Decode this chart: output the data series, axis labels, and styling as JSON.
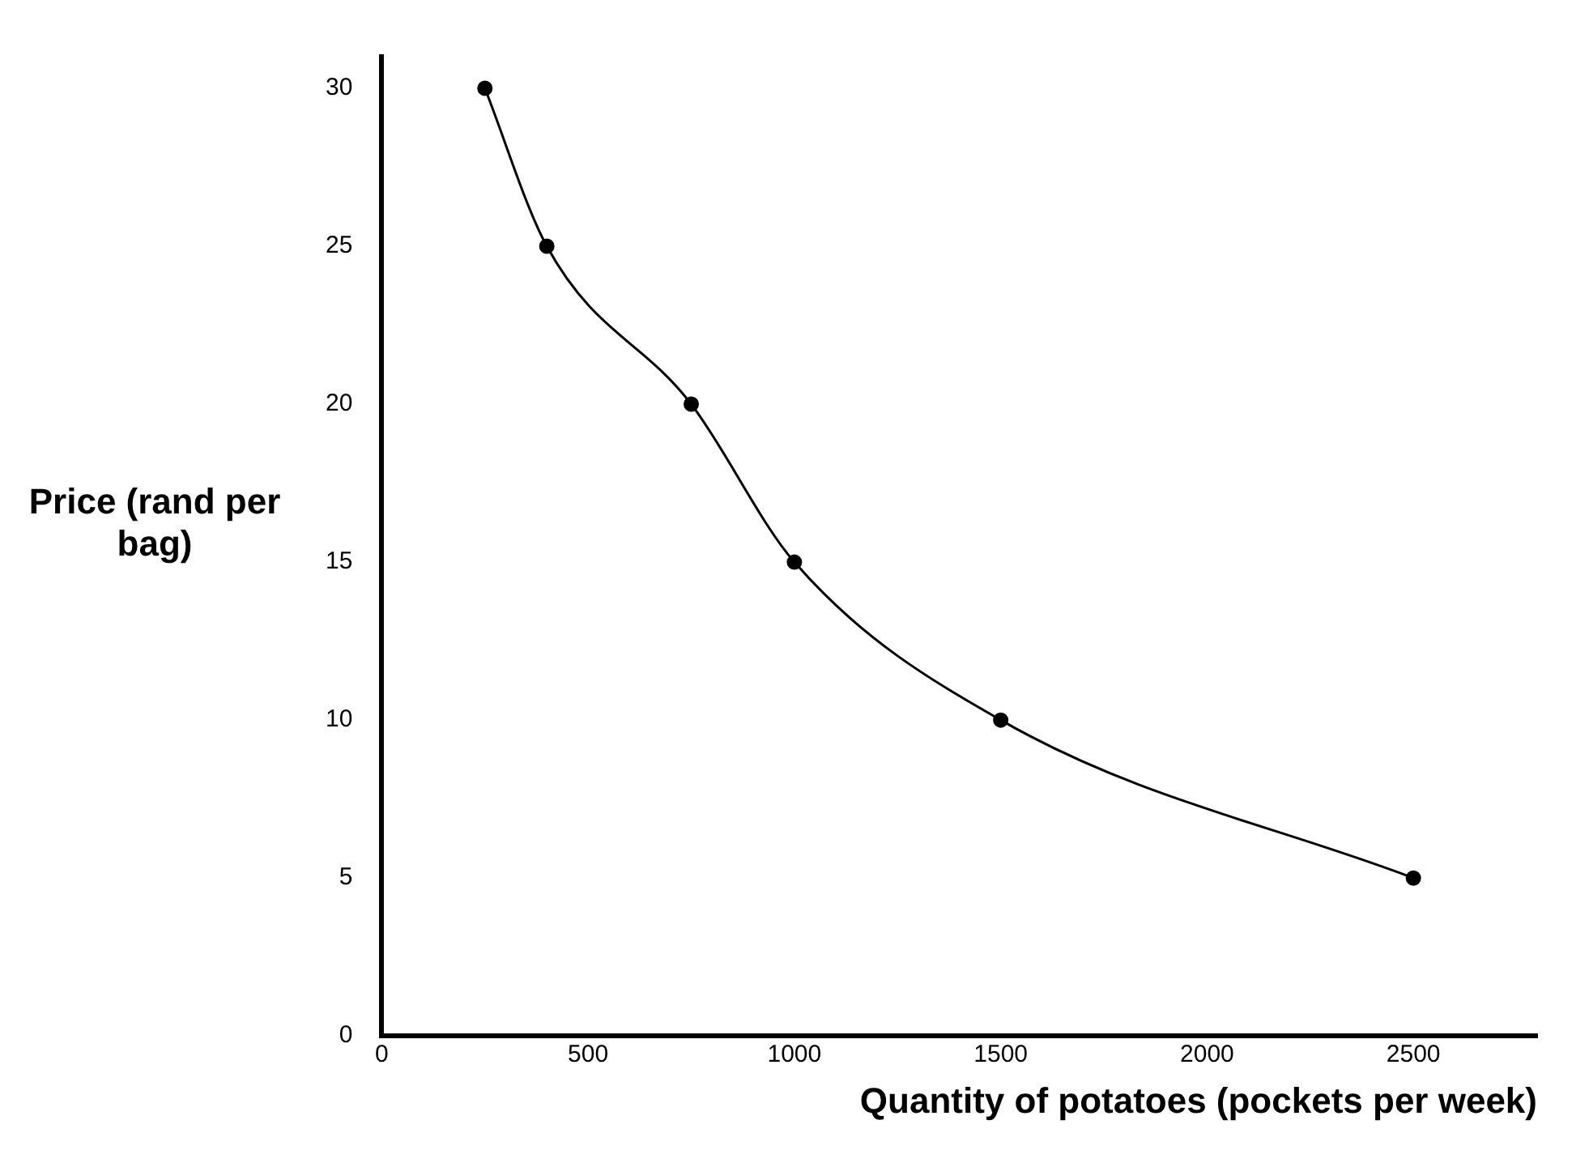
{
  "chart_data": {
    "type": "line",
    "xlabel": "Quantity of potatoes (pockets per week)",
    "ylabel": "Price (rand per bag)",
    "x": [
      250,
      400,
      750,
      1000,
      1500,
      2500
    ],
    "series": [
      {
        "color": "#000000",
        "values": [
          30,
          25,
          20,
          15,
          10,
          5
        ]
      }
    ],
    "xlim": [
      0,
      2800
    ],
    "xticks": [
      0,
      500,
      1000,
      1500,
      2000,
      2500
    ],
    "ylim": [
      0,
      31
    ],
    "yticks": [
      0,
      5,
      10,
      15,
      20,
      25,
      30
    ],
    "grid": false,
    "legend": false,
    "marker": "circle",
    "line_style": "solid"
  }
}
